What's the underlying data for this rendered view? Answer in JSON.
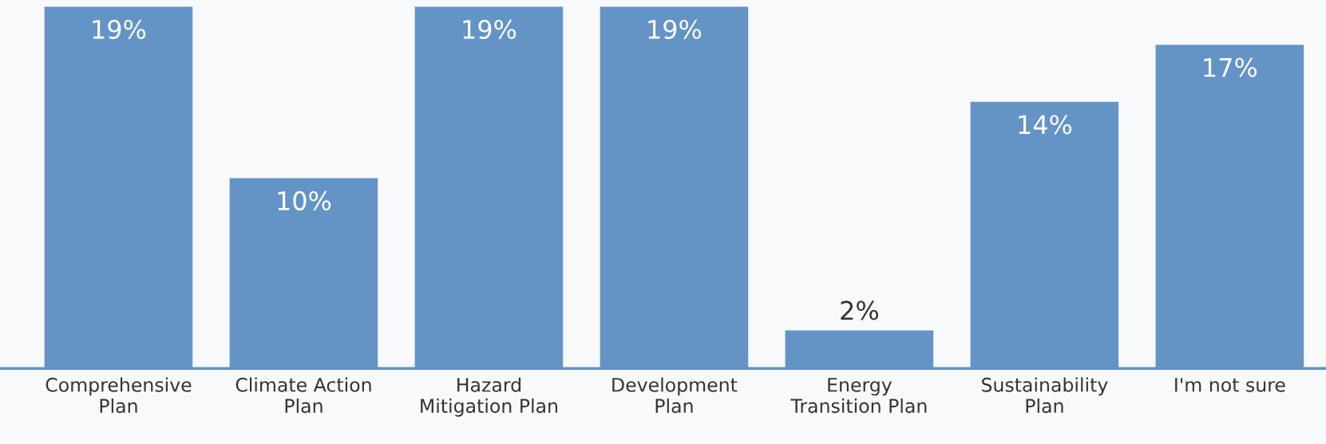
{
  "chart_data": {
    "type": "bar",
    "categories": [
      "Comprehensive\nPlan",
      "Climate Action\nPlan",
      "Hazard\nMitigation Plan",
      "Development\nPlan",
      "Energy\nTransition Plan",
      "Sustainability\nPlan",
      "I'm not sure"
    ],
    "values": [
      19,
      10,
      19,
      19,
      2,
      14,
      17
    ],
    "value_labels": [
      "19%",
      "10%",
      "19%",
      "19%",
      "2%",
      "14%",
      "17%"
    ],
    "color": "#6394c5",
    "grid": false,
    "legend": false
  }
}
